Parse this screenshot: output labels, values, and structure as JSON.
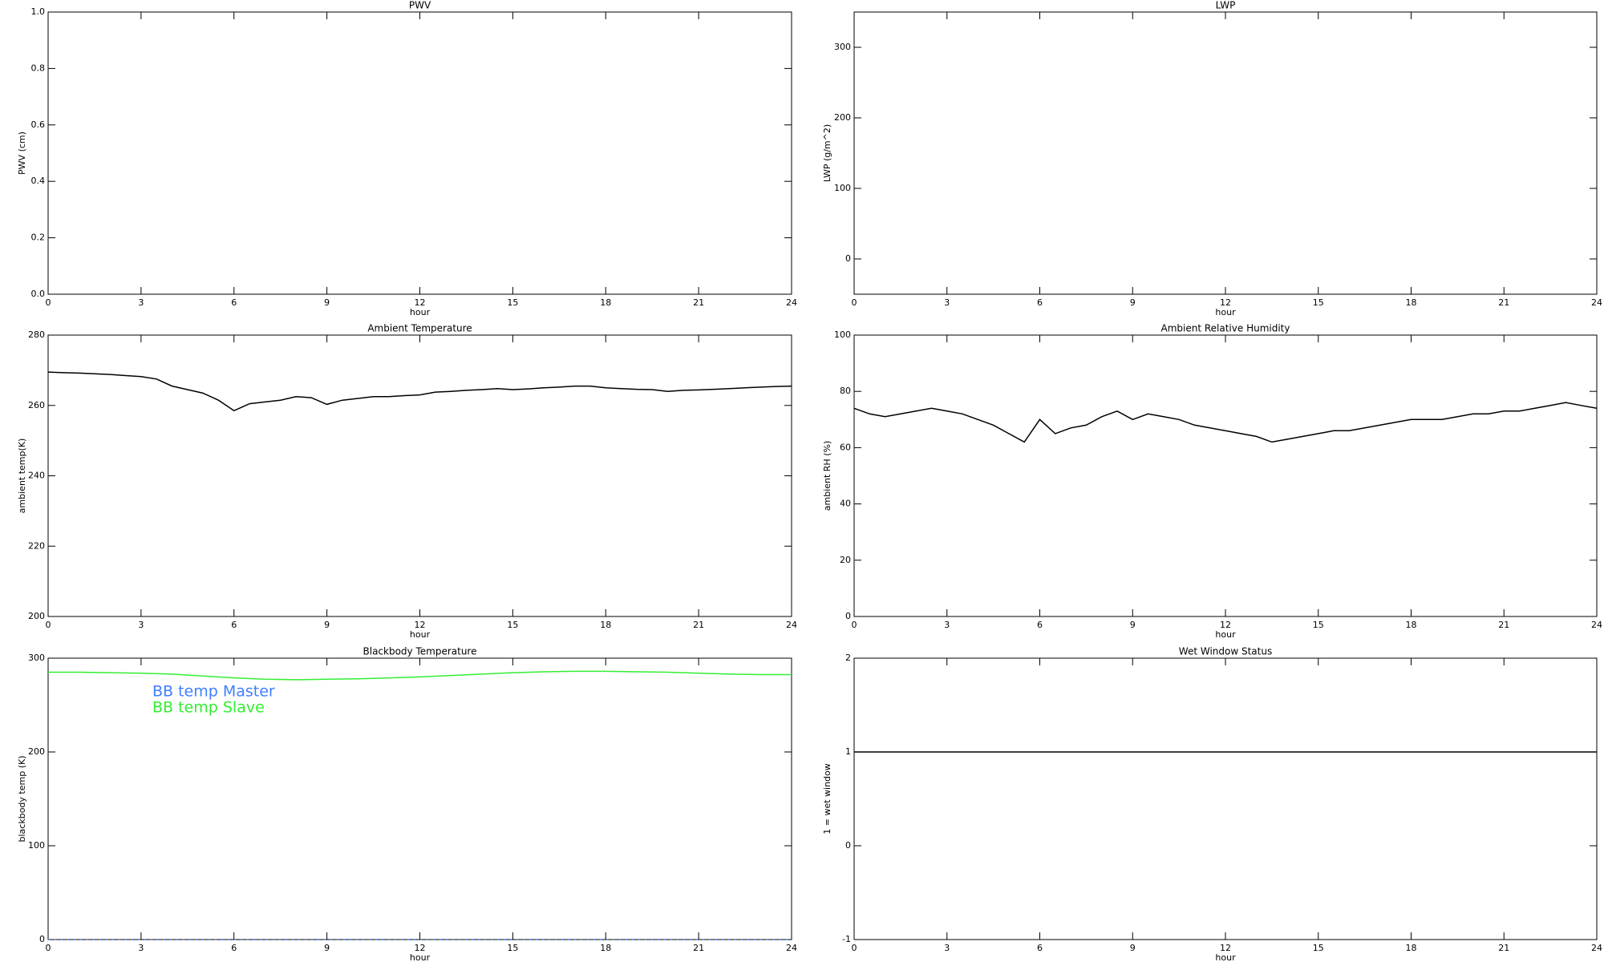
{
  "chart_data": [
    {
      "type": "line",
      "title": "PWV",
      "xlabel": "hour",
      "ylabel": "PWV (cm)",
      "x": [],
      "series": [],
      "xlim": [
        0,
        24
      ],
      "xticks": [
        0,
        3,
        6,
        9,
        12,
        15,
        18,
        21,
        24
      ],
      "ylim": [
        0,
        1
      ],
      "yticks": [
        {
          "value": 0,
          "label": "0.0"
        },
        0.2,
        0.4,
        0.6,
        0.8,
        {
          "value": 1,
          "label": "1.0"
        }
      ]
    },
    {
      "type": "line",
      "title": "LWP",
      "xlabel": "hour",
      "ylabel": "LWP (g/m^2)",
      "x": [],
      "series": [],
      "xlim": [
        0,
        24
      ],
      "xticks": [
        0,
        3,
        6,
        9,
        12,
        15,
        18,
        21,
        24
      ],
      "ylim": [
        -50,
        350
      ],
      "yticks": [
        0,
        100,
        200,
        300
      ]
    },
    {
      "type": "line",
      "title": "Ambient Temperature",
      "xlabel": "hour",
      "ylabel": "ambient temp(K)",
      "x": [
        0,
        0.5,
        1,
        1.5,
        2,
        2.5,
        3,
        3.5,
        4,
        4.5,
        5,
        5.5,
        6,
        6.5,
        7,
        7.5,
        8,
        8.5,
        9,
        9.5,
        10,
        10.5,
        11,
        11.5,
        12,
        12.5,
        13,
        13.5,
        14,
        14.5,
        15,
        15.5,
        16,
        16.5,
        17,
        17.5,
        18,
        18.5,
        19,
        19.5,
        20,
        20.5,
        21,
        21.5,
        22,
        22.5,
        23,
        23.5,
        24
      ],
      "series": [
        {
          "color": "#000000",
          "values": [
            269.5,
            269.3,
            269.2,
            269,
            268.8,
            268.5,
            268.2,
            267.5,
            265.5,
            264.5,
            263.5,
            261.5,
            258.5,
            260.5,
            261,
            261.5,
            262.5,
            262.2,
            260.3,
            261.5,
            262,
            262.5,
            262.5,
            262.8,
            263,
            263.8,
            264,
            264.3,
            264.5,
            264.8,
            264.5,
            264.7,
            265,
            265.2,
            265.5,
            265.5,
            265,
            264.8,
            264.6,
            264.5,
            264,
            264.3,
            264.4,
            264.6,
            264.8,
            265,
            265.2,
            265.4,
            265.5
          ]
        }
      ],
      "xlim": [
        0,
        24
      ],
      "xticks": [
        0,
        3,
        6,
        9,
        12,
        15,
        18,
        21,
        24
      ],
      "ylim": [
        200,
        280
      ],
      "yticks": [
        200,
        220,
        240,
        260,
        280
      ]
    },
    {
      "type": "line",
      "title": "Ambient Relative Humidity",
      "xlabel": "hour",
      "ylabel": "ambient RH (%)",
      "x": [
        0,
        0.5,
        1,
        1.5,
        2,
        2.5,
        3,
        3.5,
        4,
        4.5,
        5,
        5.5,
        6,
        6.5,
        7,
        7.5,
        8,
        8.5,
        9,
        9.5,
        10,
        10.5,
        11,
        11.5,
        12,
        12.5,
        13,
        13.5,
        14,
        14.5,
        15,
        15.5,
        16,
        16.5,
        17,
        17.5,
        18,
        18.5,
        19,
        19.5,
        20,
        20.5,
        21,
        21.5,
        22,
        22.5,
        23,
        23.5,
        24
      ],
      "series": [
        {
          "color": "#000000",
          "values": [
            74,
            72,
            71,
            72,
            73,
            74,
            73,
            72,
            70,
            68,
            65,
            62,
            70,
            65,
            67,
            68,
            71,
            73,
            70,
            72,
            71,
            70,
            68,
            67,
            66,
            65,
            64,
            62,
            63,
            64,
            65,
            66,
            66,
            67,
            68,
            69,
            70,
            70,
            70,
            71,
            72,
            72,
            73,
            73,
            74,
            75,
            76,
            75,
            74
          ]
        }
      ],
      "xlim": [
        0,
        24
      ],
      "xticks": [
        0,
        3,
        6,
        9,
        12,
        15,
        18,
        21,
        24
      ],
      "ylim": [
        0,
        100
      ],
      "yticks": [
        0,
        20,
        40,
        60,
        80,
        100
      ]
    },
    {
      "type": "line",
      "title": "Blackbody Temperature",
      "xlabel": "hour",
      "ylabel": "blackbody temp (K)",
      "x": [
        0,
        1,
        2,
        3,
        4,
        5,
        6,
        7,
        8,
        9,
        10,
        11,
        12,
        13,
        14,
        15,
        16,
        17,
        18,
        19,
        20,
        21,
        22,
        23,
        24
      ],
      "series": [
        {
          "name": "BB temp Master",
          "color": "#3f7fff",
          "linestyle": "dotted",
          "values": [
            0,
            0,
            0,
            0,
            0,
            0,
            0,
            0,
            0,
            0,
            0,
            0,
            0,
            0,
            0,
            0,
            0,
            0,
            0,
            0,
            0,
            0,
            0,
            0,
            0
          ]
        },
        {
          "name": "BB temp Slave",
          "color": "#33ee33",
          "linestyle": "solid",
          "values": [
            285,
            285,
            284.5,
            284,
            283,
            281,
            279,
            277.5,
            277,
            277.5,
            278,
            279,
            280,
            281.5,
            283,
            284.5,
            285.5,
            286,
            286,
            285.5,
            285,
            284,
            283,
            282.5,
            282.5
          ]
        }
      ],
      "xlim": [
        0,
        24
      ],
      "xticks": [
        0,
        3,
        6,
        9,
        12,
        15,
        18,
        21,
        24
      ],
      "ylim": [
        0,
        300
      ],
      "yticks": [
        0,
        100,
        200,
        300
      ]
    },
    {
      "type": "line",
      "title": "Wet Window Status",
      "xlabel": "hour",
      "ylabel": "1 = wet window",
      "x": [
        0,
        24
      ],
      "series": [
        {
          "color": "#000000",
          "values": [
            1,
            1
          ]
        }
      ],
      "xlim": [
        0,
        24
      ],
      "xticks": [
        0,
        3,
        6,
        9,
        12,
        15,
        18,
        21,
        24
      ],
      "ylim": [
        -1,
        2
      ],
      "yticks": [
        -1,
        0,
        1,
        2
      ]
    }
  ]
}
